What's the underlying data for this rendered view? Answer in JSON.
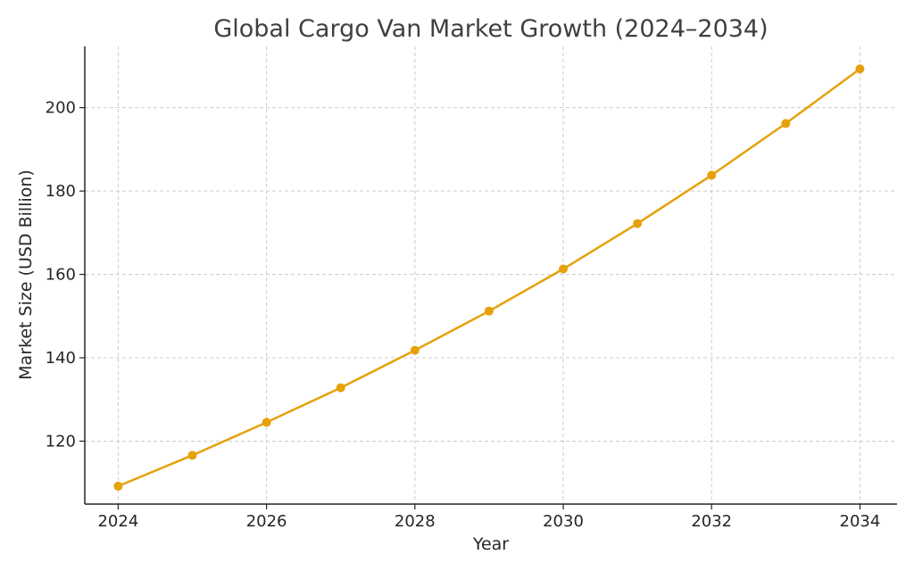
{
  "chart_data": {
    "type": "line",
    "title": "Global Cargo Van Market Growth (2024–2034)",
    "xlabel": "Year",
    "ylabel": "Market Size (USD Billion)",
    "x": [
      2024,
      2025,
      2026,
      2027,
      2028,
      2029,
      2030,
      2031,
      2032,
      2033,
      2034
    ],
    "series": [
      {
        "values": [
          109.2,
          116.6,
          124.5,
          132.8,
          141.8,
          151.2,
          161.3,
          172.2,
          183.8,
          196.2,
          209.3
        ]
      }
    ],
    "xticks": [
      2024,
      2026,
      2028,
      2030,
      2032,
      2034
    ],
    "yticks": [
      120,
      140,
      160,
      180,
      200
    ],
    "xlim": [
      2023.55,
      2034.5
    ],
    "ylim": [
      104.9,
      214.7
    ],
    "grid": true,
    "line_color": "#e6a10a",
    "marker": "circle"
  }
}
